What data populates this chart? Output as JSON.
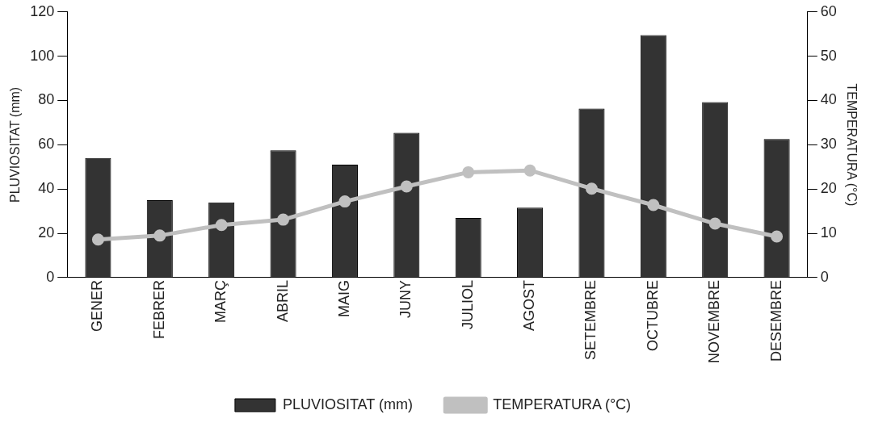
{
  "chart_data": {
    "type": "bar",
    "categories": [
      "GENER",
      "FEBRER",
      "MARÇ",
      "ABRIL",
      "MAIG",
      "JUNY",
      "JULIOL",
      "AGOST",
      "SETEMBRE",
      "OCTUBRE",
      "NOVEMBRE",
      "DESEMBRE"
    ],
    "series": [
      {
        "name": "PLUVIOSITAT (mm)",
        "color": "#333333",
        "values": [
          54,
          35,
          34,
          57.5,
          51,
          65.4,
          27,
          31.6,
          76.4,
          109.5,
          79.3,
          62.6
        ]
      },
      {
        "name": "TEMPERATURA (°C)",
        "type": "line",
        "axis": "y2",
        "color": "#c0c0c0",
        "marker": "circle",
        "values": [
          8.6,
          9.5,
          11.9,
          13.1,
          17.2,
          20.6,
          23.8,
          24.2,
          20.1,
          16.4,
          12.2,
          9.3
        ]
      }
    ],
    "ylabel": "PLUVIOSITAT (mm)",
    "y2label": "TEMPERATURA (°C)",
    "ylim": [
      0,
      120
    ],
    "yticks": [
      0,
      20,
      40,
      60,
      80,
      100,
      120
    ],
    "y2lim": [
      0,
      60
    ],
    "y2ticks": [
      0,
      10,
      20,
      30,
      40,
      50,
      60
    ],
    "grid": false,
    "legend": "bottom"
  }
}
